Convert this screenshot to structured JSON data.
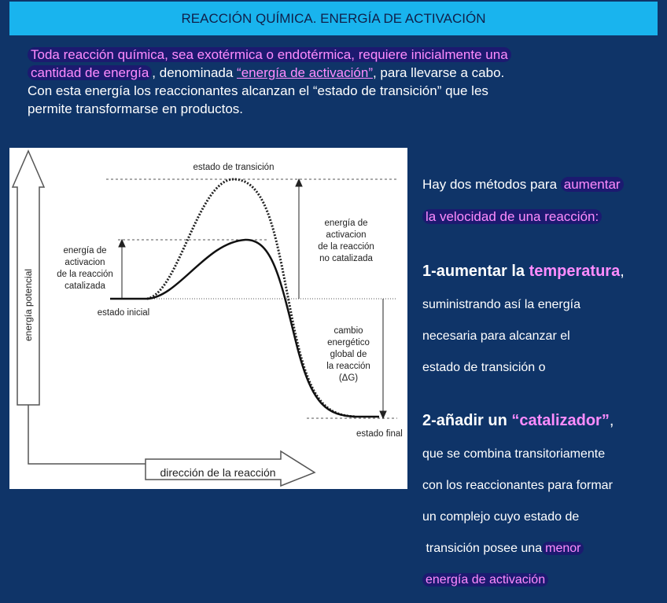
{
  "header": {
    "title": "REACCIÓN QUÍMICA. ENERGÍA DE ACTIVACIÓN"
  },
  "intro": {
    "parts": [
      "Toda reacción química, sea exotérmica o endotérmica, requiere inicialmente una",
      "cantidad de energía",
      ", denominada ",
      "“energía de activación”",
      ", para llevarse a cabo.",
      "Con esta energía los reaccionantes alcanzan el “estado de transición” que les",
      "permite transformarse en productos."
    ]
  },
  "diagram": {
    "transition_state": "estado de transición",
    "uncatalyzed_label": [
      "energía de",
      "activacion",
      "de la reacción",
      "no catalizada"
    ],
    "catalyzed_label": [
      "energía de",
      "activacion",
      "de la reacción",
      "catalizada"
    ],
    "initial_state": "estado inicial",
    "delta_g_label": [
      "cambio",
      "energético",
      "global de",
      "la reacción",
      "(ΔG)"
    ],
    "final_state": "estado final",
    "y_axis": "energía potencial",
    "x_axis": "dirección de la reacción"
  },
  "methods": {
    "intro": [
      "Hay dos métodos para ",
      "aumentar",
      "la velocidad de una reacción:"
    ],
    "method1": {
      "heading": [
        "1-aumentar la ",
        "temperatura",
        ","
      ],
      "lines": [
        "suministrando así la energía",
        "necesaria para alcanzar el",
        "estado de transición o"
      ]
    },
    "method2": {
      "heading": [
        "2-añadir un ",
        "“catalizador”",
        ","
      ],
      "lines": [
        "que se combina transitoriamente",
        "con los reaccionantes para formar",
        "un complejo cuyo estado de",
        " transición posee una"
      ],
      "highlight": [
        "menor",
        "energía de activación"
      ]
    }
  }
}
